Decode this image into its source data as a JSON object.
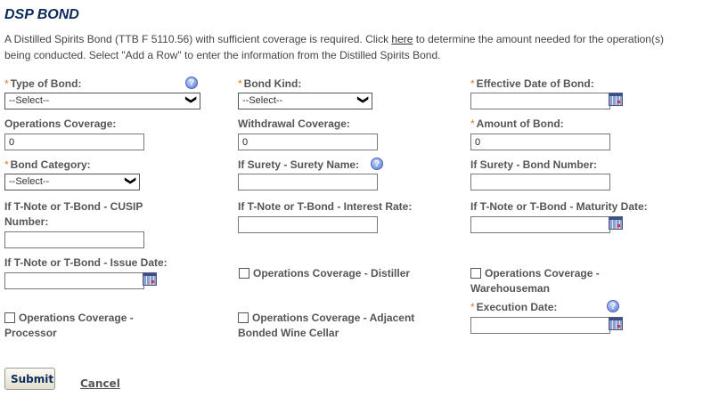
{
  "title": "DSP BOND",
  "intro": {
    "before": "A Distilled Spirits Bond (TTB F 5110.56) with sufficient coverage is required. Click ",
    "link": "here",
    "after": " to determine the amount needed for the operation(s) being conducted. Select \"Add a Row\" to enter the information from the Distilled Spirits Bond."
  },
  "required_mark": "*",
  "fields": {
    "type_of_bond": {
      "label": "Type of Bond:",
      "value": "--Select--"
    },
    "bond_kind": {
      "label": "Bond Kind:",
      "value": "--Select--"
    },
    "effective_date": {
      "label": "Effective Date of Bond:",
      "value": ""
    },
    "operations_coverage": {
      "label": "Operations Coverage:",
      "value": "0"
    },
    "withdrawal_coverage": {
      "label": "Withdrawal Coverage:",
      "value": "0"
    },
    "amount_of_bond": {
      "label": "Amount of Bond:",
      "value": "0"
    },
    "bond_category": {
      "label": "Bond Category:",
      "value": "--Select--"
    },
    "surety_name": {
      "label": "If Surety - Surety Name:",
      "value": ""
    },
    "surety_bond_number": {
      "label": "If Surety - Bond Number:",
      "value": ""
    },
    "cusip": {
      "label": "If T-Note or T-Bond - CUSIP Number:",
      "value": ""
    },
    "interest_rate": {
      "label": "If T-Note or T-Bond - Interest Rate:",
      "value": ""
    },
    "maturity_date": {
      "label": "If T-Note or T-Bond - Maturity Date:",
      "value": ""
    },
    "issue_date": {
      "label": "If T-Note or T-Bond - Issue Date:",
      "value": ""
    },
    "execution_date": {
      "label": "Execution Date:",
      "value": ""
    }
  },
  "checkboxes": {
    "distiller": {
      "label": "Operations Coverage - Distiller",
      "checked": false
    },
    "warehouseman": {
      "label": "Operations Coverage - Warehouseman",
      "checked": false
    },
    "processor": {
      "label": "Operations Coverage - Processor",
      "checked": false
    },
    "wine_cellar": {
      "label": "Operations Coverage - Adjacent Bonded Wine Cellar",
      "checked": false
    }
  },
  "icons": {
    "help": "?",
    "calendar": "calendar-icon",
    "chevron": "❯"
  },
  "buttons": {
    "submit": "Submit",
    "cancel": "Cancel"
  }
}
